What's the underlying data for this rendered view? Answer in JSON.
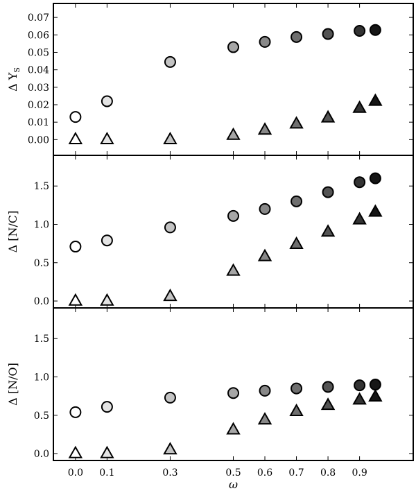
{
  "chart_data": [
    {
      "type": "scatter",
      "ylabel": "Δ Y",
      "ylabel_sub": "S",
      "ylim": [
        -0.009,
        0.078
      ],
      "yticks": [
        0.0,
        0.01,
        0.02,
        0.03,
        0.04,
        0.05,
        0.06,
        0.07
      ],
      "ytick_labels": [
        "0.00",
        "0.01",
        "0.02",
        "0.03",
        "0.04",
        "0.05",
        "0.06",
        "0.07"
      ],
      "series": [
        {
          "marker": "circle",
          "x": [
            0.0,
            0.1,
            0.3,
            0.5,
            0.6,
            0.7,
            0.8,
            0.9,
            0.95
          ],
          "y": [
            0.013,
            0.022,
            0.0445,
            0.053,
            0.056,
            0.0588,
            0.0605,
            0.0623,
            0.0628
          ],
          "fills": [
            "#ffffff",
            "#e4e4e4",
            "#c3c3c3",
            "#a6a6a6",
            "#888888",
            "#6f6f6f",
            "#545454",
            "#333333",
            "#161616"
          ]
        },
        {
          "marker": "triangle",
          "x": [
            0.0,
            0.1,
            0.3,
            0.5,
            0.6,
            0.7,
            0.8,
            0.9,
            0.95
          ],
          "y": [
            0.0,
            0.0,
            0.0,
            0.0025,
            0.0055,
            0.009,
            0.0125,
            0.018,
            0.022
          ],
          "fills": [
            "#ffffff",
            "#e4e4e4",
            "#c3c3c3",
            "#a6a6a6",
            "#888888",
            "#6f6f6f",
            "#545454",
            "#333333",
            "#161616"
          ]
        }
      ]
    },
    {
      "type": "scatter",
      "ylabel": "Δ [N/C]",
      "ylim": [
        -0.09,
        1.9
      ],
      "yticks": [
        0.0,
        0.5,
        1.0,
        1.5
      ],
      "ytick_labels": [
        "0.0",
        "0.5",
        "1.0",
        "1.5"
      ],
      "series": [
        {
          "marker": "circle",
          "x": [
            0.0,
            0.1,
            0.3,
            0.5,
            0.6,
            0.7,
            0.8,
            0.9,
            0.95
          ],
          "y": [
            0.71,
            0.79,
            0.96,
            1.11,
            1.2,
            1.3,
            1.42,
            1.55,
            1.6
          ],
          "fills": [
            "#ffffff",
            "#e4e4e4",
            "#c3c3c3",
            "#a6a6a6",
            "#888888",
            "#6f6f6f",
            "#545454",
            "#333333",
            "#161616"
          ]
        },
        {
          "marker": "triangle",
          "x": [
            0.0,
            0.1,
            0.3,
            0.5,
            0.6,
            0.7,
            0.8,
            0.9,
            0.95
          ],
          "y": [
            0.0,
            0.0,
            0.06,
            0.39,
            0.58,
            0.74,
            0.9,
            1.06,
            1.16
          ],
          "fills": [
            "#ffffff",
            "#e4e4e4",
            "#c3c3c3",
            "#a6a6a6",
            "#888888",
            "#6f6f6f",
            "#545454",
            "#333333",
            "#161616"
          ]
        }
      ]
    },
    {
      "type": "scatter",
      "ylabel": "Δ [N/O]",
      "xlabel": "ω",
      "ylim": [
        -0.09,
        1.9
      ],
      "yticks": [
        0.0,
        0.5,
        1.0,
        1.5
      ],
      "ytick_labels": [
        "0.0",
        "0.5",
        "1.0",
        "1.5"
      ],
      "xlim": [
        -0.07,
        1.07
      ],
      "xticks": [
        0.0,
        0.1,
        0.3,
        0.5,
        0.6,
        0.7,
        0.8,
        0.9
      ],
      "xtick_labels": [
        "0.0",
        "0.1",
        "0.3",
        "0.5",
        "0.6",
        "0.7",
        "0.8",
        "0.9"
      ],
      "series": [
        {
          "marker": "circle",
          "x": [
            0.0,
            0.1,
            0.3,
            0.5,
            0.6,
            0.7,
            0.8,
            0.9,
            0.95
          ],
          "y": [
            0.54,
            0.61,
            0.73,
            0.79,
            0.82,
            0.85,
            0.87,
            0.89,
            0.9
          ],
          "fills": [
            "#ffffff",
            "#e4e4e4",
            "#c3c3c3",
            "#a6a6a6",
            "#888888",
            "#6f6f6f",
            "#545454",
            "#333333",
            "#161616"
          ]
        },
        {
          "marker": "triangle",
          "x": [
            0.0,
            0.1,
            0.3,
            0.5,
            0.6,
            0.7,
            0.8,
            0.9,
            0.95
          ],
          "y": [
            0.0,
            0.0,
            0.05,
            0.31,
            0.44,
            0.55,
            0.63,
            0.7,
            0.74
          ],
          "fills": [
            "#ffffff",
            "#e4e4e4",
            "#c3c3c3",
            "#a6a6a6",
            "#888888",
            "#6f6f6f",
            "#545454",
            "#333333",
            "#161616"
          ]
        }
      ]
    }
  ]
}
